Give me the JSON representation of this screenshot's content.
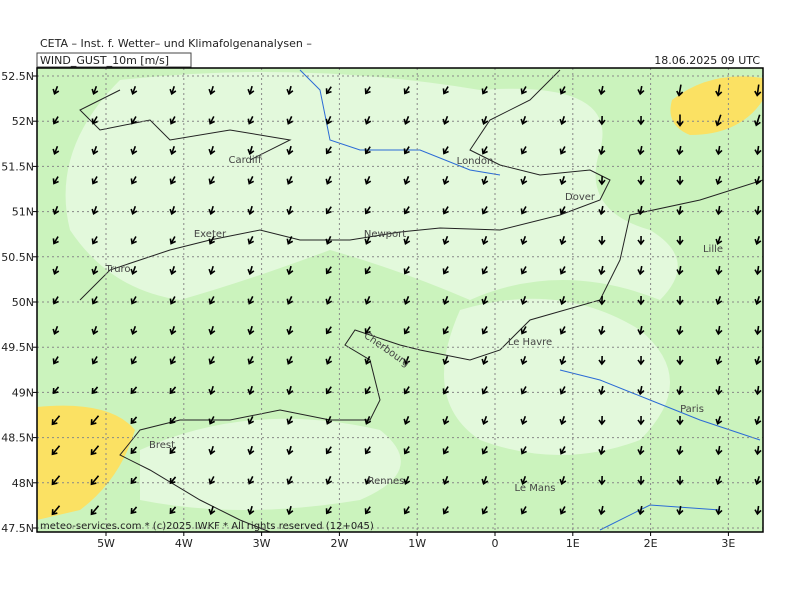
{
  "header": {
    "title": "CETA – Inst. f. Wetter– und Klimafolgenanalysen –",
    "parameter": "WIND_GUST_10m [m/s]",
    "valid_time": "18.06.2025 09 UTC"
  },
  "map": {
    "lat_labels": [
      "52.5N",
      "52N",
      "51.5N",
      "51N",
      "50.5N",
      "50N",
      "49.5N",
      "49N",
      "48.5N",
      "48N",
      "47.5N"
    ],
    "lon_labels": [
      "5W",
      "4W",
      "3W",
      "2W",
      "1W",
      "0",
      "1E",
      "2E",
      "3E"
    ],
    "cities": [
      "Cardiff",
      "London",
      "Dover",
      "Exeter",
      "Newport",
      "Truro",
      "Lille",
      "Cherbourg",
      "Le Havre",
      "Paris",
      "Brest",
      "Rennes",
      "Le Mans"
    ]
  },
  "footer": "meteo-services.com * (c)2025 IWKF * All rights reserved (12+045)"
}
